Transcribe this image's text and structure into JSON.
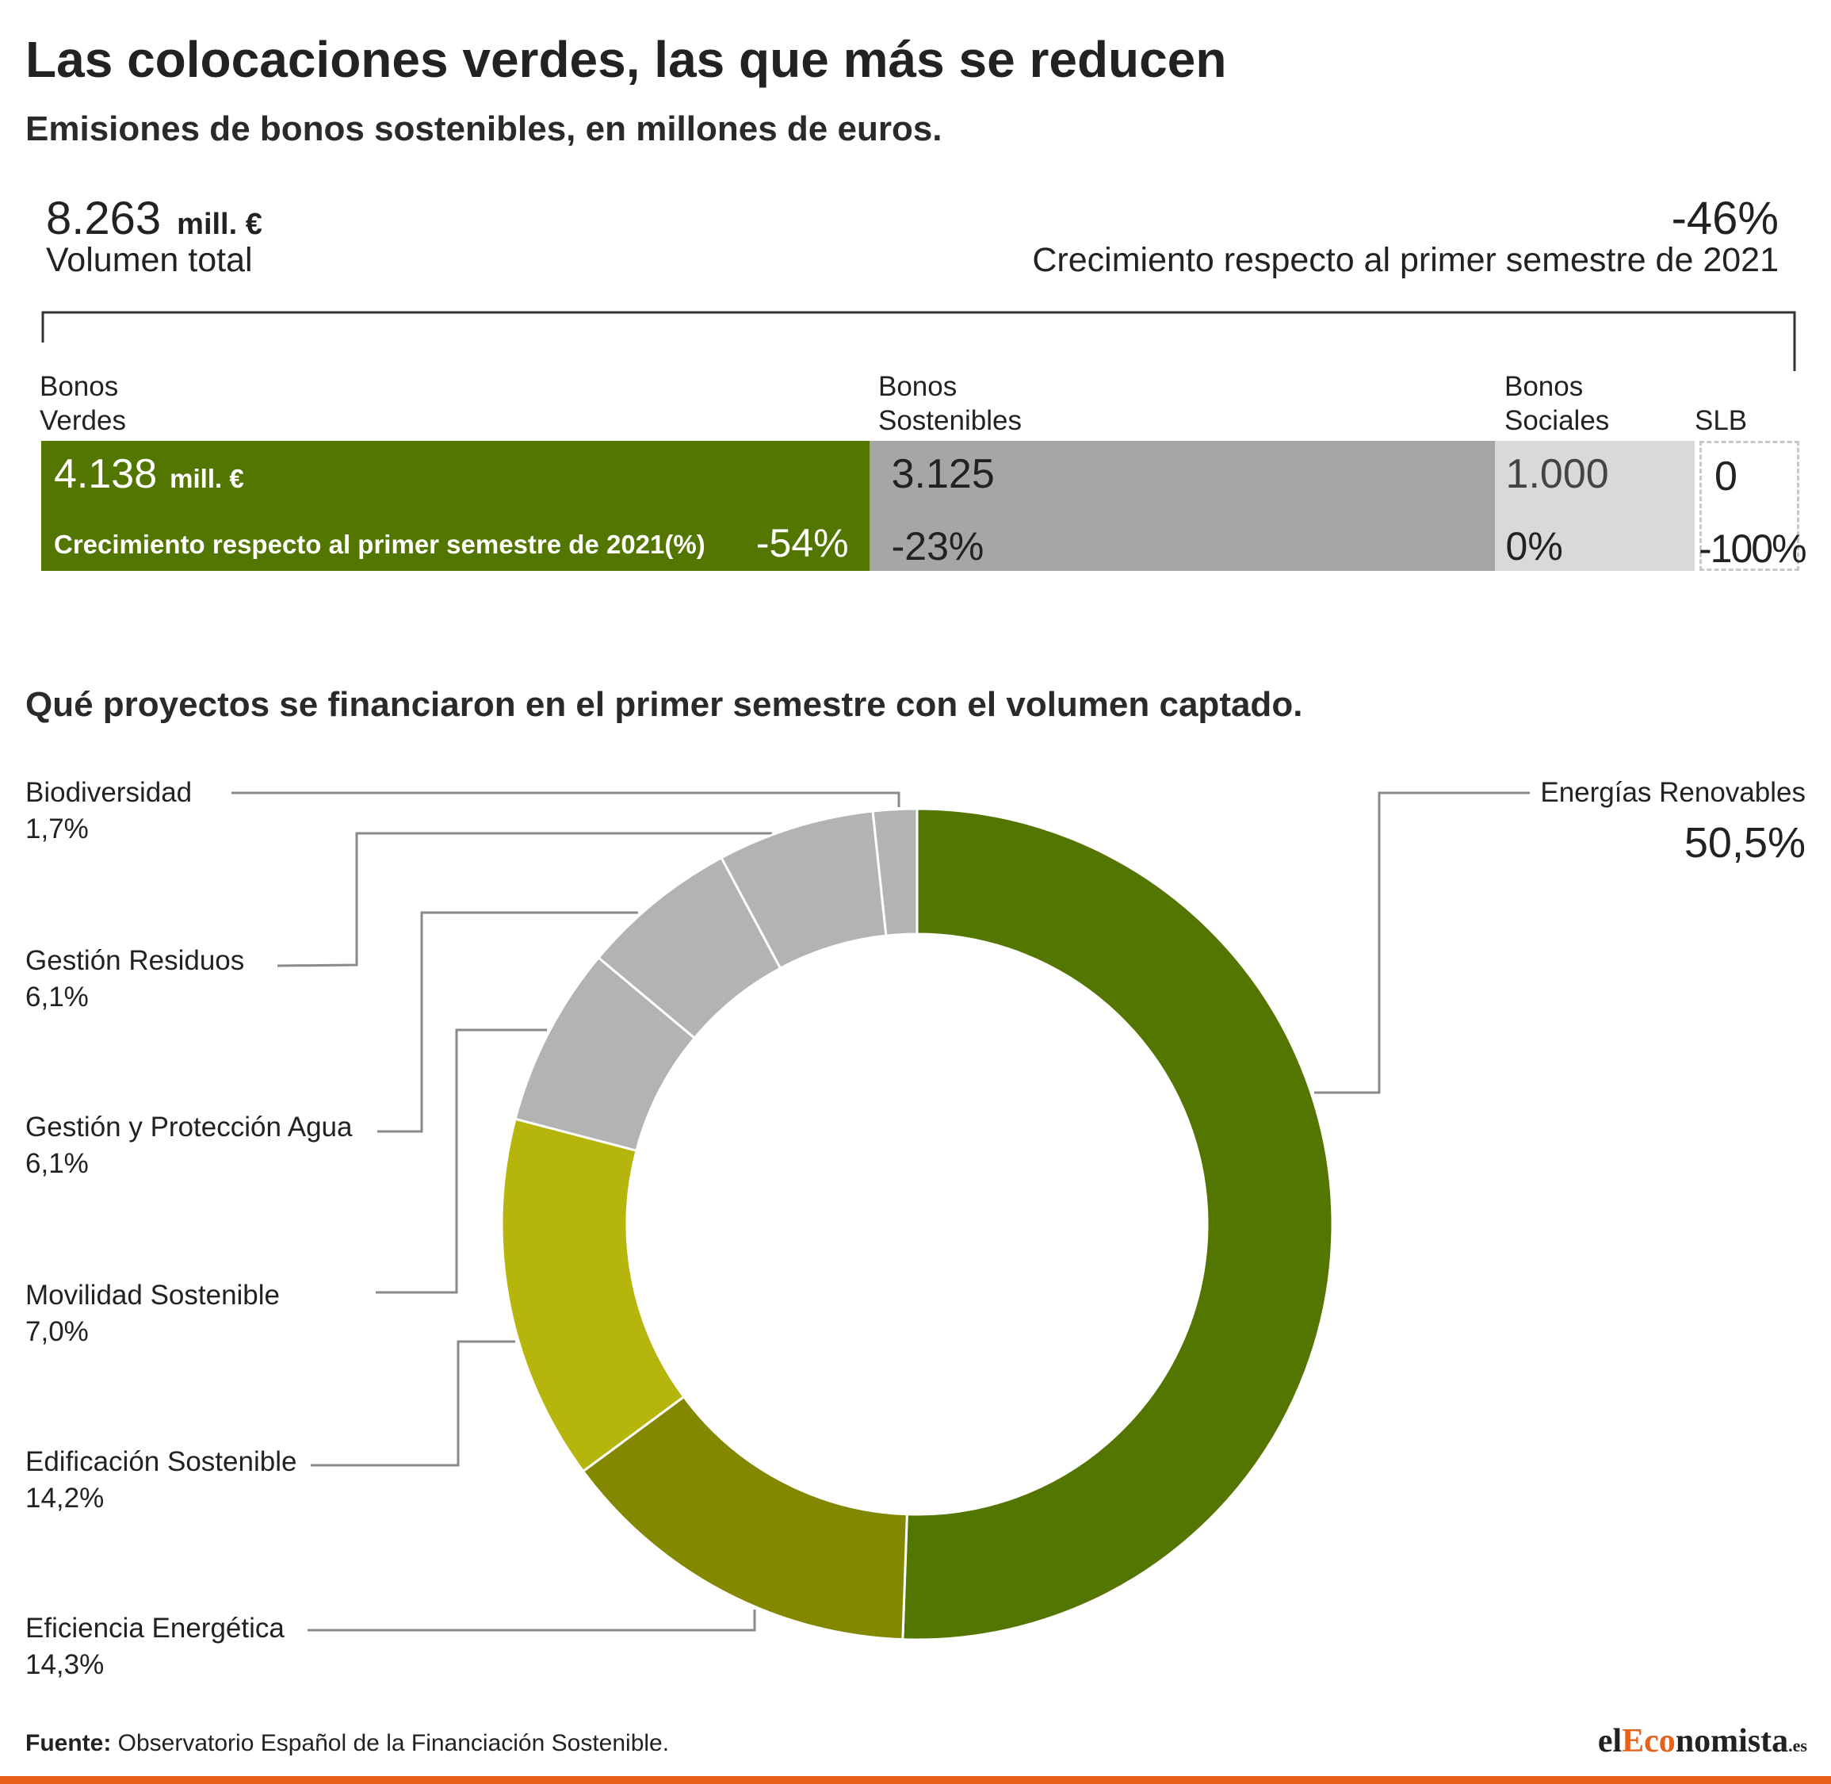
{
  "title": "Las colocaciones verdes, las que más se reducen",
  "subtitle": "Emisiones de bonos sostenibles, en millones de euros.",
  "summary": {
    "total_value": "8.263",
    "total_unit": "mill. €",
    "total_label": "Volumen total",
    "growth_value": "-46%",
    "growth_label": "Crecimiento respecto al primer semestre de 2021"
  },
  "bond_bar": {
    "growth_caption": "Crecimiento respecto al primer semestre de 2021(%)",
    "segments": [
      {
        "label_line1": "Bonos",
        "label_line2": "Verdes",
        "value": 4138,
        "value_text": "4.138",
        "unit": "mill. €",
        "growth": "-54%",
        "color": "#537600"
      },
      {
        "label_line1": "Bonos",
        "label_line2": "Sostenibles",
        "value": 3125,
        "value_text": "3.125",
        "growth": "-23%",
        "color": "#a6a6a6"
      },
      {
        "label_line1": "Bonos",
        "label_line2": "Sociales",
        "value": 1000,
        "value_text": "1.000",
        "growth": "0%",
        "color": "#d9d9d9"
      },
      {
        "label_line1": "",
        "label_line2": "SLB",
        "value": 0,
        "value_text": "0",
        "growth": "-100%",
        "color": "#ffffff"
      }
    ]
  },
  "projects_title": "Qué proyectos se financiaron en el primer semestre con el volumen captado.",
  "chart_data": {
    "type": "pie",
    "style": "donut",
    "categories": [
      "Energías Renovables",
      "Eficiencia Energética",
      "Edificación Sostenible",
      "Movilidad Sostenible",
      "Gestión y Protección Agua",
      "Gestión Residuos",
      "Biodiversidad"
    ],
    "values": [
      50.5,
      14.3,
      14.2,
      7.0,
      6.1,
      6.1,
      1.7
    ],
    "labels": [
      "50,5%",
      "14,3%",
      "14,2%",
      "7,0%",
      "6,1%",
      "6,1%",
      "1,7%"
    ],
    "colors": [
      "#537600",
      "#838800",
      "#b5b50c",
      "#b3b3b3",
      "#b3b3b3",
      "#b3b3b3",
      "#b3b3b3"
    ],
    "unit": "%"
  },
  "source": {
    "label": "Fuente:",
    "text": " Observatorio Español de la Financiación Sostenible."
  },
  "logo": {
    "part1": "el",
    "part2": "Eco",
    "part3": "nomista",
    "part4": ".es"
  }
}
